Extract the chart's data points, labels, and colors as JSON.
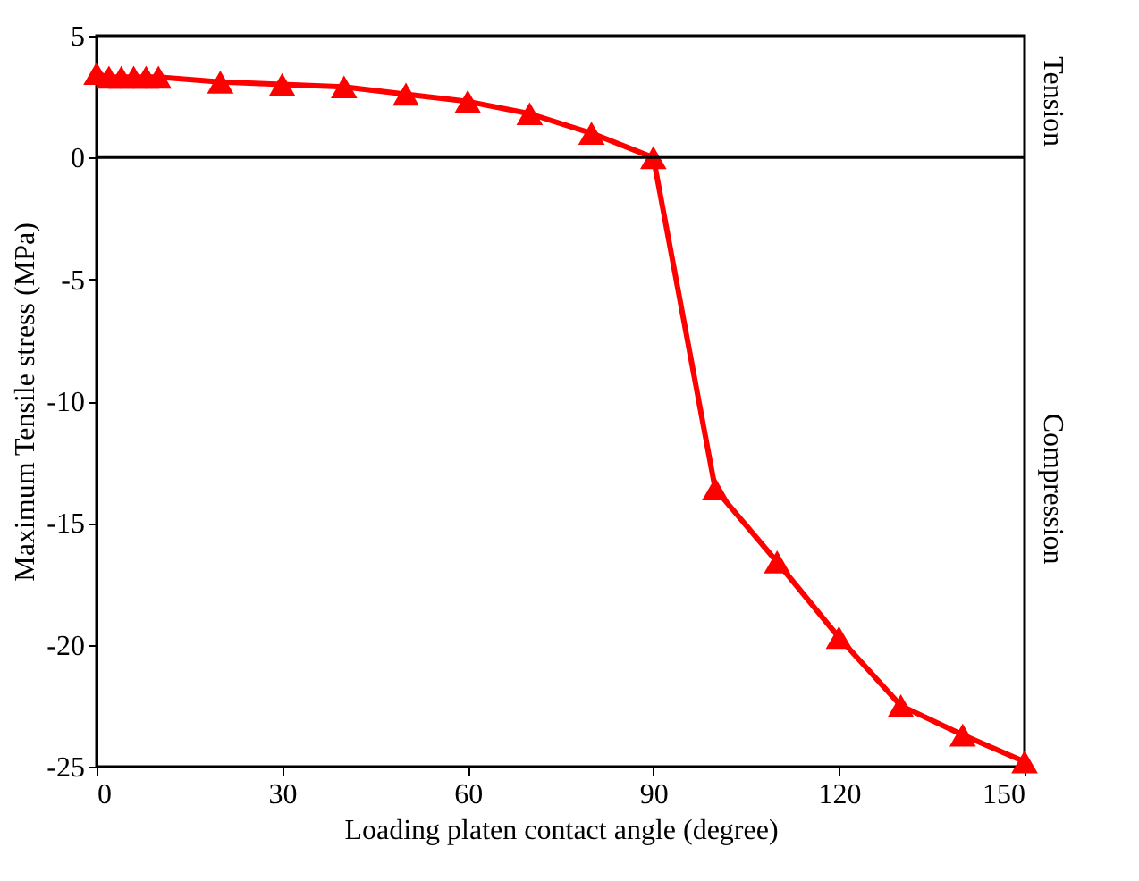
{
  "chart_data": {
    "type": "line",
    "xlabel": "Loading platen contact angle (degree)",
    "ylabel": "Maximum Tensile stress (MPa)",
    "x": [
      0,
      2,
      4,
      6,
      8,
      10,
      20,
      30,
      40,
      50,
      60,
      70,
      80,
      90,
      100,
      110,
      120,
      130,
      140,
      150
    ],
    "series": [
      {
        "color": "#ff0000",
        "values": [
          3.45,
          3.3,
          3.3,
          3.3,
          3.3,
          3.3,
          3.1,
          3.0,
          2.9,
          2.6,
          2.3,
          1.8,
          1.0,
          0,
          -13.6,
          -16.6,
          -19.7,
          -22.5,
          -23.7,
          -24.8
        ]
      }
    ],
    "marker": "triangle",
    "line_style": "solid",
    "xlim": [
      0,
      150
    ],
    "xticks": [
      0,
      30,
      60,
      90,
      120,
      150
    ],
    "ylim": [
      -25,
      5
    ],
    "yticks": [
      -25,
      -20,
      -15,
      -10,
      -5,
      0,
      5
    ],
    "ref_lines": [
      {
        "axis": "y",
        "value": 0,
        "color": "#000000"
      }
    ],
    "annotations": [
      "Tension",
      "Compression"
    ],
    "grid": false,
    "legend": false
  }
}
